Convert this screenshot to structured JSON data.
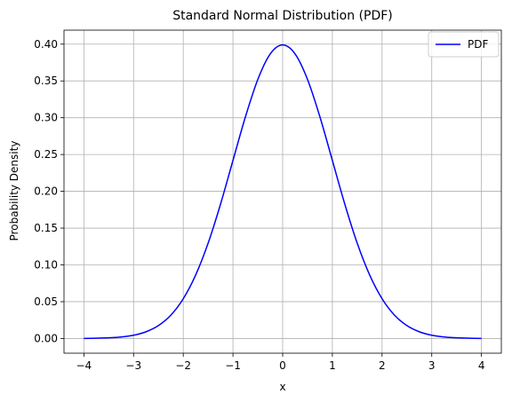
{
  "chart_data": {
    "type": "line",
    "title": "Standard Normal Distribution (PDF)",
    "xlabel": "x",
    "ylabel": "Probability Density",
    "xlim": [
      -4.4,
      4.4
    ],
    "ylim": [
      -0.02,
      0.419
    ],
    "x_ticks": [
      -4,
      -3,
      -2,
      -1,
      0,
      1,
      2,
      3,
      4
    ],
    "x_tick_labels": [
      "−4",
      "−3",
      "−2",
      "−1",
      "0",
      "1",
      "2",
      "3",
      "4"
    ],
    "y_ticks": [
      0.0,
      0.05,
      0.1,
      0.15,
      0.2,
      0.25,
      0.3,
      0.35,
      0.4
    ],
    "y_tick_labels": [
      "0.00",
      "0.05",
      "0.10",
      "0.15",
      "0.20",
      "0.25",
      "0.30",
      "0.35",
      "0.40"
    ],
    "grid": true,
    "legend_position": "top-right",
    "series": [
      {
        "name": "PDF",
        "color": "#0000ff",
        "x": [
          -4.0,
          -3.75,
          -3.5,
          -3.25,
          -3.0,
          -2.75,
          -2.5,
          -2.25,
          -2.0,
          -1.75,
          -1.5,
          -1.25,
          -1.0,
          -0.75,
          -0.5,
          -0.25,
          0.0,
          0.25,
          0.5,
          0.75,
          1.0,
          1.25,
          1.5,
          1.75,
          2.0,
          2.25,
          2.5,
          2.75,
          3.0,
          3.25,
          3.5,
          3.75,
          4.0
        ],
        "y": [
          0.0001,
          0.0004,
          0.0009,
          0.002,
          0.0044,
          0.0091,
          0.0175,
          0.0317,
          0.054,
          0.0863,
          0.1295,
          0.1826,
          0.242,
          0.3011,
          0.3521,
          0.3867,
          0.3989,
          0.3867,
          0.3521,
          0.3011,
          0.242,
          0.1826,
          0.1295,
          0.0863,
          0.054,
          0.0317,
          0.0175,
          0.0091,
          0.0044,
          0.002,
          0.0009,
          0.0004,
          0.0001
        ]
      }
    ]
  }
}
